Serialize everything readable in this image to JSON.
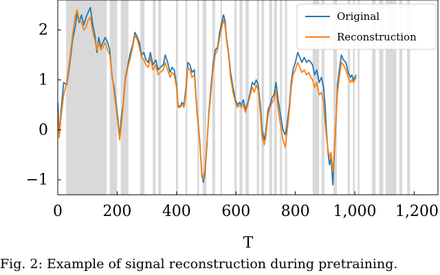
{
  "chart_data": {
    "type": "line",
    "title": "",
    "xlabel": "T",
    "ylabel": "",
    "xlim": [
      0,
      1280
    ],
    "ylim": [
      -1.3,
      2.6
    ],
    "xticks": [
      0,
      200,
      400,
      600,
      800,
      1000,
      1200
    ],
    "xtick_labels": [
      "0",
      "200",
      "400",
      "600",
      "800",
      "1,000",
      "1,200"
    ],
    "yticks": [
      -1,
      0,
      1,
      2
    ],
    "ytick_labels": [
      "−1",
      "0",
      "1",
      "2"
    ],
    "legend_position": "top-right",
    "grid": false,
    "masked_intervals": [
      [
        28,
        165
      ],
      [
        175,
        200
      ],
      [
        212,
        238
      ],
      [
        278,
        292
      ],
      [
        320,
        330
      ],
      [
        338,
        348
      ],
      [
        398,
        405
      ],
      [
        430,
        436
      ],
      [
        470,
        476
      ],
      [
        488,
        500
      ],
      [
        520,
        530
      ],
      [
        548,
        553
      ],
      [
        595,
        602
      ],
      [
        612,
        622
      ],
      [
        632,
        643
      ],
      [
        670,
        678
      ],
      [
        686,
        695
      ],
      [
        712,
        722
      ],
      [
        728,
        738
      ],
      [
        748,
        755
      ],
      [
        765,
        772
      ],
      [
        858,
        880
      ],
      [
        888,
        898
      ],
      [
        928,
        940
      ],
      [
        976,
        984
      ],
      [
        994,
        1000
      ],
      [
        1010,
        1016
      ],
      [
        1058,
        1070
      ],
      [
        1082,
        1096
      ],
      [
        1104,
        1140
      ],
      [
        1150,
        1160
      ],
      [
        1176,
        1186
      ]
    ],
    "series": [
      {
        "name": "Original",
        "color": "#1f77b4",
        "points": [
          [
            0,
            0.55
          ],
          [
            5,
            -0.1
          ],
          [
            10,
            0.3
          ],
          [
            20,
            0.95
          ],
          [
            30,
            0.9
          ],
          [
            40,
            1.3
          ],
          [
            50,
            1.8
          ],
          [
            60,
            2.1
          ],
          [
            65,
            2.35
          ],
          [
            72,
            2.15
          ],
          [
            80,
            2.3
          ],
          [
            88,
            2.1
          ],
          [
            95,
            2.25
          ],
          [
            102,
            2.35
          ],
          [
            110,
            2.45
          ],
          [
            118,
            2.1
          ],
          [
            125,
            1.9
          ],
          [
            132,
            1.55
          ],
          [
            138,
            1.85
          ],
          [
            145,
            1.65
          ],
          [
            152,
            1.75
          ],
          [
            160,
            1.85
          ],
          [
            168,
            1.75
          ],
          [
            175,
            1.6
          ],
          [
            183,
            1.05
          ],
          [
            190,
            0.85
          ],
          [
            195,
            0.6
          ],
          [
            202,
            0.25
          ],
          [
            208,
            -0.15
          ],
          [
            214,
            0.25
          ],
          [
            220,
            0.5
          ],
          [
            228,
            1.05
          ],
          [
            236,
            1.3
          ],
          [
            245,
            1.55
          ],
          [
            252,
            1.7
          ],
          [
            260,
            1.95
          ],
          [
            268,
            1.85
          ],
          [
            275,
            1.75
          ],
          [
            282,
            1.5
          ],
          [
            290,
            1.55
          ],
          [
            297,
            1.4
          ],
          [
            305,
            1.35
          ],
          [
            312,
            1.55
          ],
          [
            320,
            1.3
          ],
          [
            330,
            1.4
          ],
          [
            338,
            1.2
          ],
          [
            345,
            1.25
          ],
          [
            355,
            1.3
          ],
          [
            362,
            1.5
          ],
          [
            370,
            1.35
          ],
          [
            378,
            1.15
          ],
          [
            385,
            1.25
          ],
          [
            392,
            1.2
          ],
          [
            400,
            0.9
          ],
          [
            405,
            0.5
          ],
          [
            412,
            0.45
          ],
          [
            418,
            0.55
          ],
          [
            425,
            0.5
          ],
          [
            432,
            0.85
          ],
          [
            438,
            1.35
          ],
          [
            445,
            1.3
          ],
          [
            452,
            1.15
          ],
          [
            460,
            1.2
          ],
          [
            465,
            0.7
          ],
          [
            470,
            0.3
          ],
          [
            478,
            -0.2
          ],
          [
            485,
            -0.9
          ],
          [
            490,
            -1.05
          ],
          [
            495,
            -0.9
          ],
          [
            502,
            -0.35
          ],
          [
            508,
            0.3
          ],
          [
            515,
            0.8
          ],
          [
            522,
            1.25
          ],
          [
            530,
            1.6
          ],
          [
            538,
            1.65
          ],
          [
            545,
            1.95
          ],
          [
            552,
            2.15
          ],
          [
            558,
            2.3
          ],
          [
            563,
            2.2
          ],
          [
            568,
            1.85
          ],
          [
            575,
            1.55
          ],
          [
            582,
            1.15
          ],
          [
            590,
            0.85
          ],
          [
            598,
            0.6
          ],
          [
            605,
            0.5
          ],
          [
            612,
            0.55
          ],
          [
            618,
            0.5
          ],
          [
            625,
            0.6
          ],
          [
            632,
            0.4
          ],
          [
            640,
            0.55
          ],
          [
            648,
            0.75
          ],
          [
            655,
            0.95
          ],
          [
            662,
            0.9
          ],
          [
            668,
            1.0
          ],
          [
            675,
            0.9
          ],
          [
            682,
            0.5
          ],
          [
            688,
            0.0
          ],
          [
            695,
            -0.2
          ],
          [
            700,
            -0.05
          ],
          [
            708,
            0.4
          ],
          [
            715,
            0.5
          ],
          [
            722,
            0.65
          ],
          [
            728,
            0.7
          ],
          [
            735,
            0.95
          ],
          [
            742,
            0.6
          ],
          [
            750,
            0.3
          ],
          [
            758,
            0.0
          ],
          [
            766,
            -0.1
          ],
          [
            772,
            0.1
          ],
          [
            780,
            0.5
          ],
          [
            786,
            0.95
          ],
          [
            792,
            1.2
          ],
          [
            800,
            1.35
          ],
          [
            808,
            1.55
          ],
          [
            815,
            1.45
          ],
          [
            822,
            1.35
          ],
          [
            830,
            1.45
          ],
          [
            838,
            1.35
          ],
          [
            845,
            1.4
          ],
          [
            852,
            1.35
          ],
          [
            858,
            1.3
          ],
          [
            865,
            1.1
          ],
          [
            872,
            1.2
          ],
          [
            880,
            0.95
          ],
          [
            888,
            1.05
          ],
          [
            895,
            0.85
          ],
          [
            900,
            0.5
          ],
          [
            905,
            -0.05
          ],
          [
            910,
            -0.45
          ],
          [
            915,
            -0.7
          ],
          [
            920,
            -0.55
          ],
          [
            926,
            -1.1
          ],
          [
            930,
            -0.6
          ],
          [
            936,
            0.1
          ],
          [
            942,
            0.9
          ],
          [
            948,
            1.2
          ],
          [
            955,
            1.5
          ],
          [
            962,
            1.4
          ],
          [
            970,
            1.35
          ],
          [
            978,
            1.15
          ],
          [
            985,
            1.05
          ],
          [
            990,
            1.1
          ],
          [
            995,
            1.0
          ],
          [
            1000,
            1.05
          ],
          [
            1005,
            1.1
          ]
        ]
      },
      {
        "name": "Reconstruction",
        "color": "#ff7f0e",
        "points": [
          [
            0,
            0.35
          ],
          [
            5,
            -0.15
          ],
          [
            10,
            0.2
          ],
          [
            20,
            0.7
          ],
          [
            30,
            0.95
          ],
          [
            40,
            1.4
          ],
          [
            50,
            1.9
          ],
          [
            58,
            2.25
          ],
          [
            65,
            2.4
          ],
          [
            72,
            2.2
          ],
          [
            80,
            2.15
          ],
          [
            88,
            2.0
          ],
          [
            95,
            2.05
          ],
          [
            102,
            2.2
          ],
          [
            110,
            2.25
          ],
          [
            118,
            1.95
          ],
          [
            125,
            1.8
          ],
          [
            132,
            1.6
          ],
          [
            138,
            1.75
          ],
          [
            145,
            1.6
          ],
          [
            152,
            1.65
          ],
          [
            160,
            1.75
          ],
          [
            168,
            1.6
          ],
          [
            175,
            1.5
          ],
          [
            183,
            1.1
          ],
          [
            190,
            0.75
          ],
          [
            195,
            0.5
          ],
          [
            202,
            0.15
          ],
          [
            208,
            -0.2
          ],
          [
            214,
            0.1
          ],
          [
            220,
            0.45
          ],
          [
            228,
            1.0
          ],
          [
            236,
            1.25
          ],
          [
            245,
            1.45
          ],
          [
            252,
            1.65
          ],
          [
            260,
            1.9
          ],
          [
            268,
            1.8
          ],
          [
            275,
            1.65
          ],
          [
            282,
            1.45
          ],
          [
            290,
            1.4
          ],
          [
            297,
            1.3
          ],
          [
            305,
            1.25
          ],
          [
            312,
            1.45
          ],
          [
            320,
            1.2
          ],
          [
            330,
            1.3
          ],
          [
            338,
            1.1
          ],
          [
            345,
            1.15
          ],
          [
            355,
            1.2
          ],
          [
            362,
            1.35
          ],
          [
            370,
            1.2
          ],
          [
            378,
            1.05
          ],
          [
            385,
            1.15
          ],
          [
            392,
            1.1
          ],
          [
            400,
            0.85
          ],
          [
            405,
            0.45
          ],
          [
            412,
            0.45
          ],
          [
            418,
            0.5
          ],
          [
            425,
            0.45
          ],
          [
            432,
            0.75
          ],
          [
            438,
            1.25
          ],
          [
            445,
            1.2
          ],
          [
            452,
            1.05
          ],
          [
            460,
            1.1
          ],
          [
            465,
            0.65
          ],
          [
            470,
            0.25
          ],
          [
            478,
            -0.25
          ],
          [
            485,
            -0.85
          ],
          [
            490,
            -1.0
          ],
          [
            495,
            -0.8
          ],
          [
            502,
            -0.3
          ],
          [
            508,
            0.25
          ],
          [
            515,
            0.7
          ],
          [
            522,
            1.15
          ],
          [
            530,
            1.5
          ],
          [
            538,
            1.6
          ],
          [
            545,
            1.85
          ],
          [
            552,
            2.05
          ],
          [
            558,
            2.2
          ],
          [
            563,
            2.1
          ],
          [
            568,
            1.8
          ],
          [
            575,
            1.5
          ],
          [
            582,
            1.05
          ],
          [
            590,
            0.75
          ],
          [
            598,
            0.55
          ],
          [
            605,
            0.45
          ],
          [
            612,
            0.5
          ],
          [
            618,
            0.45
          ],
          [
            625,
            0.5
          ],
          [
            632,
            0.35
          ],
          [
            640,
            0.5
          ],
          [
            648,
            0.7
          ],
          [
            655,
            0.85
          ],
          [
            662,
            0.75
          ],
          [
            668,
            0.9
          ],
          [
            675,
            0.8
          ],
          [
            682,
            0.35
          ],
          [
            688,
            -0.15
          ],
          [
            695,
            -0.3
          ],
          [
            700,
            -0.15
          ],
          [
            708,
            0.3
          ],
          [
            715,
            0.45
          ],
          [
            722,
            0.55
          ],
          [
            728,
            0.6
          ],
          [
            735,
            0.8
          ],
          [
            742,
            0.4
          ],
          [
            750,
            0.1
          ],
          [
            758,
            -0.2
          ],
          [
            766,
            -0.35
          ],
          [
            772,
            -0.05
          ],
          [
            780,
            0.4
          ],
          [
            786,
            0.85
          ],
          [
            792,
            1.1
          ],
          [
            800,
            1.2
          ],
          [
            808,
            1.35
          ],
          [
            815,
            1.25
          ],
          [
            822,
            1.15
          ],
          [
            830,
            1.2
          ],
          [
            838,
            1.1
          ],
          [
            845,
            1.15
          ],
          [
            852,
            1.05
          ],
          [
            858,
            1.0
          ],
          [
            865,
            0.85
          ],
          [
            872,
            0.95
          ],
          [
            880,
            0.7
          ],
          [
            888,
            0.75
          ],
          [
            895,
            0.55
          ],
          [
            900,
            0.15
          ],
          [
            905,
            -0.15
          ],
          [
            910,
            -0.4
          ],
          [
            915,
            -0.55
          ],
          [
            920,
            -0.45
          ],
          [
            926,
            -0.85
          ],
          [
            930,
            -0.5
          ],
          [
            936,
            0.15
          ],
          [
            942,
            0.75
          ],
          [
            948,
            1.05
          ],
          [
            955,
            1.35
          ],
          [
            962,
            1.3
          ],
          [
            970,
            1.2
          ],
          [
            978,
            1.05
          ],
          [
            985,
            0.95
          ],
          [
            990,
            1.0
          ],
          [
            995,
            0.95
          ],
          [
            1000,
            1.0
          ],
          [
            1005,
            1.05
          ]
        ]
      }
    ]
  },
  "caption": "Fig. 2: Example of signal reconstruction during pretraining."
}
